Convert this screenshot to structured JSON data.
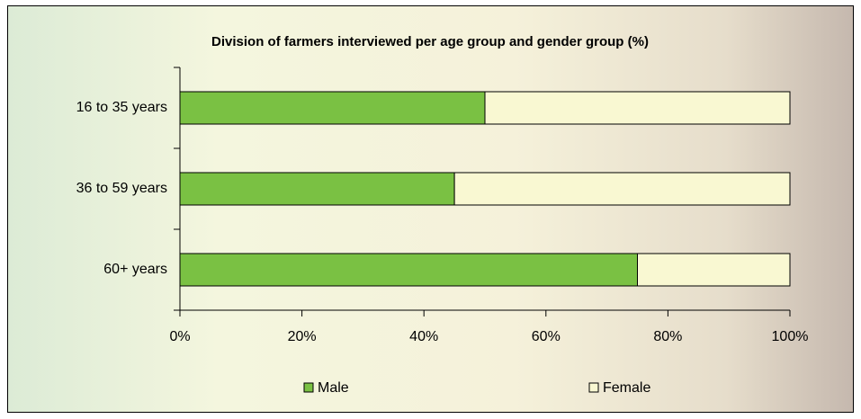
{
  "chart_data": {
    "type": "bar",
    "orientation": "horizontal",
    "stacked": true,
    "title": "Division of farmers interviewed per age group and gender group (%)",
    "categories": [
      "16 to 35 years",
      "36 to 59 years",
      "60+ years"
    ],
    "series": [
      {
        "name": "Male",
        "color": "#7ac143",
        "values": [
          50,
          45,
          75
        ]
      },
      {
        "name": "Female",
        "color": "#f9f8d2",
        "values": [
          50,
          55,
          25
        ]
      }
    ],
    "xlim": [
      0,
      100
    ],
    "xticks": [
      {
        "value": 0,
        "label": "0%"
      },
      {
        "value": 20,
        "label": "20%"
      },
      {
        "value": 40,
        "label": "40%"
      },
      {
        "value": 60,
        "label": "60%"
      },
      {
        "value": 80,
        "label": "80%"
      },
      {
        "value": 100,
        "label": "100%"
      }
    ],
    "legend": "bottom"
  }
}
